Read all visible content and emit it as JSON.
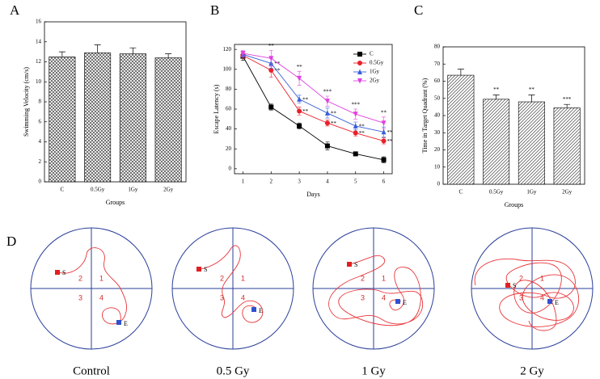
{
  "chart_data": [
    {
      "type": "bar",
      "label": "A",
      "categories": [
        "C",
        "0.5Gy",
        "1Gy",
        "2Gy"
      ],
      "values": [
        12.5,
        12.9,
        12.8,
        12.4
      ],
      "errors": [
        0.5,
        0.8,
        0.6,
        0.4
      ],
      "color": "#444444",
      "hatch": "cross",
      "xlabel": "Groups",
      "ylabel": "Swimming Velocity (cm/s)",
      "ylim": [
        0,
        16
      ],
      "yticks": [
        0,
        2,
        4,
        6,
        8,
        10,
        12,
        14,
        16
      ]
    },
    {
      "type": "line",
      "label": "B",
      "x": [
        1,
        2,
        3,
        4,
        5,
        6
      ],
      "xlabel": "Days",
      "ylabel": "Escape Latency (s)",
      "xlim": [
        0.7,
        6.3
      ],
      "xticks": [
        1,
        2,
        3,
        4,
        5,
        6
      ],
      "ylim": [
        -5,
        125
      ],
      "yticks": [
        0,
        20,
        40,
        60,
        80,
        100,
        120
      ],
      "legend": "upper right",
      "series": [
        {
          "name": "C",
          "color": "#000000",
          "marker": "square",
          "values": [
            113,
            62,
            43,
            23,
            15,
            9
          ],
          "errors": [
            4,
            3,
            3,
            4,
            2,
            3
          ]
        },
        {
          "name": "0.5Gy",
          "color": "#e8202a",
          "marker": "circle",
          "values": [
            114,
            99,
            58,
            46,
            36,
            28
          ],
          "errors": [
            3,
            7,
            4,
            3,
            3,
            3
          ],
          "significance": [
            null,
            "**",
            "**",
            "**",
            "**",
            "**"
          ]
        },
        {
          "name": "1Gy",
          "color": "#3a5fd8",
          "marker": "triangle-up",
          "values": [
            115,
            106,
            70,
            56,
            43,
            37
          ],
          "errors": [
            3,
            5,
            4,
            5,
            4,
            5
          ],
          "significance": [
            null,
            "**",
            "**",
            "**",
            "**",
            "**"
          ]
        },
        {
          "name": "2Gy",
          "color": "#e040e0",
          "marker": "triangle-down",
          "values": [
            116,
            111,
            91,
            68,
            55,
            46
          ],
          "errors": [
            3,
            8,
            7,
            5,
            5,
            6
          ],
          "significance": [
            null,
            "**",
            "**",
            "***",
            "***",
            "**"
          ]
        }
      ]
    },
    {
      "type": "bar",
      "label": "C",
      "categories": [
        "C",
        "0.5Gy",
        "1Gy",
        "2Gy"
      ],
      "values": [
        63.5,
        49.5,
        48,
        44.5
      ],
      "errors": [
        3.5,
        2.5,
        4,
        2
      ],
      "significance": [
        null,
        "**",
        "**",
        "***"
      ],
      "color": "#444444",
      "hatch": "diagonal",
      "xlabel": "Groups",
      "ylabel": "Time in Target Quadrant (%)",
      "ylim": [
        0,
        80
      ],
      "yticks": [
        0,
        10,
        20,
        30,
        40,
        50,
        60,
        70,
        80
      ]
    }
  ],
  "panel_d": {
    "label": "D",
    "quadrant_labels": [
      "1",
      "2",
      "3",
      "4"
    ],
    "start_label": "S",
    "end_label": "E",
    "trials": [
      "Control",
      "0.5 Gy",
      "1 Gy",
      "2 Gy"
    ]
  }
}
